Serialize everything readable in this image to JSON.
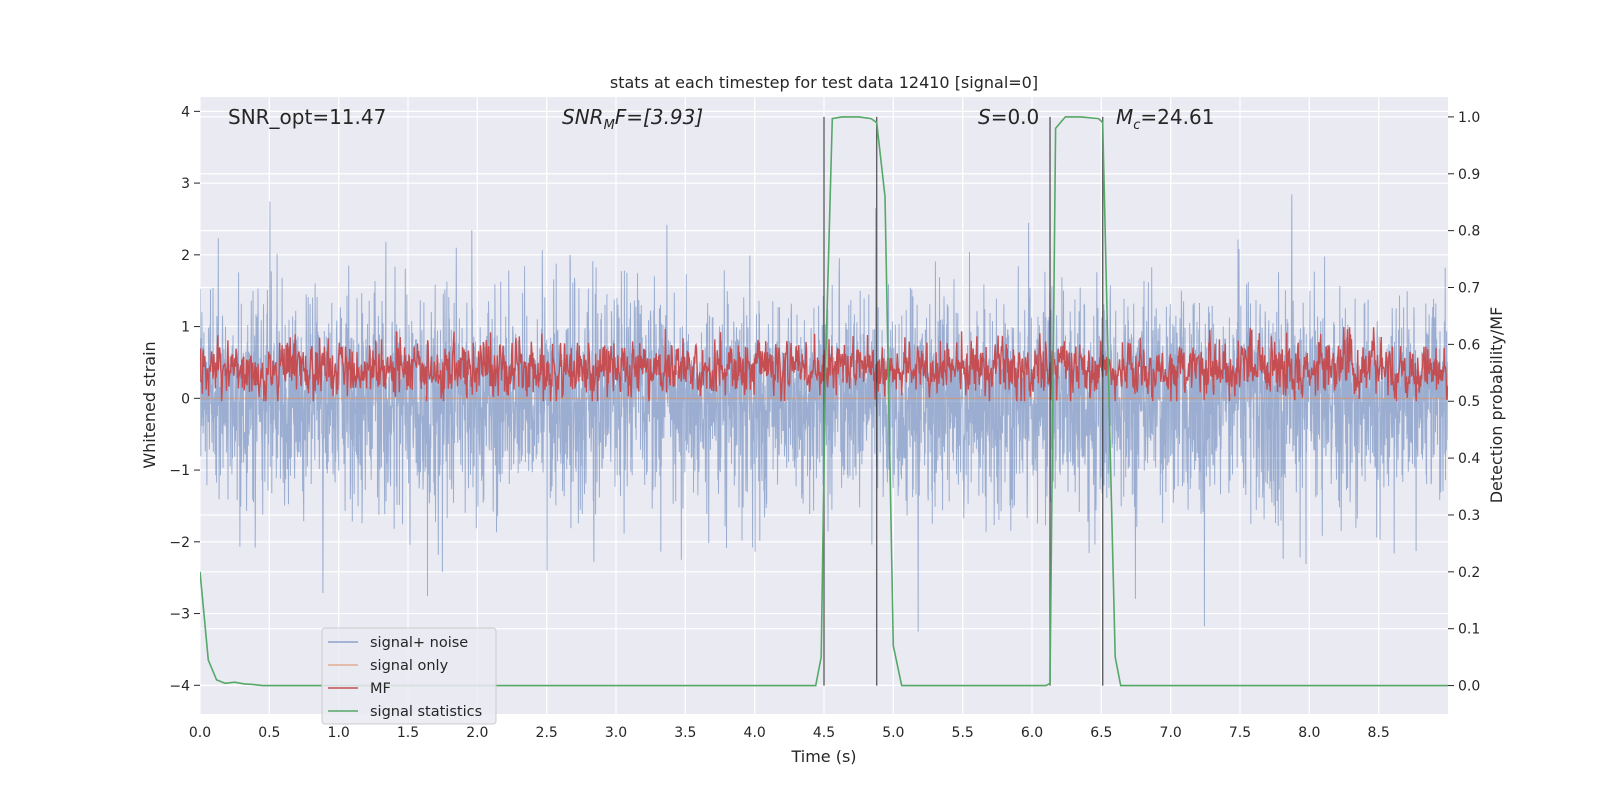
{
  "chart_data": {
    "type": "line",
    "title": "stats at each timestep for test data 12410 [signal=0]",
    "xlabel": "Time (s)",
    "ylabel": "Whitened strain",
    "ylabel_right": "Detection probability/MF",
    "xlim": [
      0.0,
      9.0
    ],
    "ylim": [
      -4.4,
      4.2
    ],
    "ylim_right": [
      -0.05,
      1.035
    ],
    "x_ticks": [
      "0.0",
      "0.5",
      "1.0",
      "1.5",
      "2.0",
      "2.5",
      "3.0",
      "3.5",
      "4.0",
      "4.5",
      "5.0",
      "5.5",
      "6.0",
      "6.5",
      "7.0",
      "7.5",
      "8.0",
      "8.5"
    ],
    "y_ticks": [
      "4",
      "3",
      "2",
      "1",
      "0",
      "−1",
      "−2",
      "−3",
      "−4"
    ],
    "y_ticks_right": [
      "1.0",
      "0.9",
      "0.8",
      "0.7",
      "0.6",
      "0.5",
      "0.4",
      "0.3",
      "0.2",
      "0.1",
      "0.0"
    ],
    "annotations": {
      "snr_opt": "SNR_opt=11.47",
      "snr_mf_main": "SNR",
      "snr_mf_sub": "M",
      "snr_mf_tail": "F=[3.93]",
      "s_var": "S",
      "s_val": "=0.0",
      "mc_var": "M",
      "mc_sub": "c",
      "mc_val": "=24.61"
    },
    "vlines_x": [
      4.5,
      4.88,
      6.13,
      6.51
    ],
    "series": [
      {
        "name": "signal+ noise",
        "axis": "left",
        "color": "#4c72b0",
        "note": "whitened noise, std ~0.7, spikes to about ±3.5"
      },
      {
        "name": "signal only",
        "axis": "left",
        "color": "#dd8452",
        "note": "zero everywhere (signal=0)"
      },
      {
        "name": "MF",
        "axis": "right",
        "color": "#c44e52",
        "note": "matched filter around 0.55, range 0.5–0.63"
      },
      {
        "name": "signal statistics",
        "axis": "right",
        "color": "#55a868",
        "x": [
          0.0,
          0.06,
          0.12,
          0.18,
          0.25,
          0.32,
          0.38,
          0.45,
          1.0,
          2.0,
          3.0,
          4.0,
          4.44,
          4.48,
          4.51,
          4.56,
          4.63,
          4.75,
          4.84,
          4.88,
          4.94,
          5.0,
          5.06,
          5.5,
          6.0,
          6.1,
          6.13,
          6.17,
          6.24,
          6.35,
          6.48,
          6.51,
          6.56,
          6.6,
          6.64,
          7.0,
          8.0,
          9.0
        ],
        "y": [
          0.2,
          0.045,
          0.01,
          0.004,
          0.006,
          0.003,
          0.002,
          0.0,
          0.0,
          0.0,
          0.0,
          0.0,
          0.0,
          0.05,
          0.55,
          0.997,
          1.0,
          1.0,
          0.997,
          0.99,
          0.86,
          0.07,
          0.0,
          0.0,
          0.0,
          0.0,
          0.004,
          0.98,
          1.0,
          1.0,
          0.997,
          0.99,
          0.45,
          0.05,
          0.0,
          0.0,
          0.0,
          0.0
        ]
      }
    ],
    "legend": {
      "position": "lower-left",
      "entries": [
        {
          "label": "signal+ noise",
          "color": "#4c72b0"
        },
        {
          "label": "signal only",
          "color": "#dd8452"
        },
        {
          "label": "MF",
          "color": "#c44e52"
        },
        {
          "label": "signal statistics",
          "color": "#55a868"
        }
      ]
    },
    "style": {
      "axes_facecolor": "#eaeaf2",
      "grid_color": "#ffffff",
      "vline_color": "#333333"
    }
  }
}
